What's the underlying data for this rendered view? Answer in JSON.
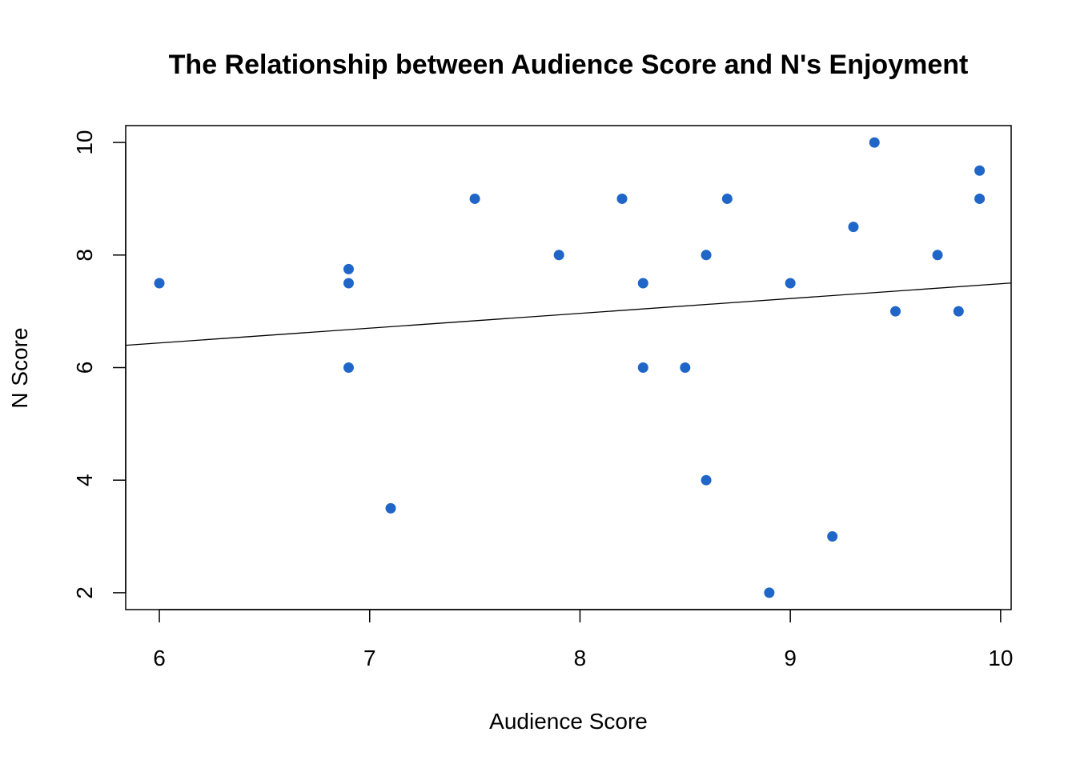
{
  "chart_data": {
    "type": "scatter",
    "title": "The Relationship between Audience Score and N's Enjoyment",
    "xlabel": "Audience Score",
    "ylabel": "N Score",
    "xlim": [
      5.84,
      10.05
    ],
    "ylim": [
      1.7,
      10.3
    ],
    "xticks": [
      6,
      7,
      8,
      9,
      10
    ],
    "yticks": [
      2,
      4,
      6,
      8,
      10
    ],
    "xtick_labels": [
      "6",
      "7",
      "8",
      "9",
      "10"
    ],
    "ytick_labels": [
      "2",
      "4",
      "6",
      "8",
      "10"
    ],
    "grid": false,
    "point_color": "#1f66c8",
    "line_color": "#000000",
    "points": [
      {
        "x": 6.0,
        "y": 7.5
      },
      {
        "x": 6.9,
        "y": 7.75
      },
      {
        "x": 6.9,
        "y": 7.5
      },
      {
        "x": 6.9,
        "y": 6.0
      },
      {
        "x": 7.1,
        "y": 3.5
      },
      {
        "x": 7.5,
        "y": 9.0
      },
      {
        "x": 7.9,
        "y": 8.0
      },
      {
        "x": 8.2,
        "y": 9.0
      },
      {
        "x": 8.3,
        "y": 7.5
      },
      {
        "x": 8.3,
        "y": 6.0
      },
      {
        "x": 8.5,
        "y": 6.0
      },
      {
        "x": 8.6,
        "y": 8.0
      },
      {
        "x": 8.6,
        "y": 4.0
      },
      {
        "x": 8.7,
        "y": 9.0
      },
      {
        "x": 8.9,
        "y": 2.0
      },
      {
        "x": 9.0,
        "y": 7.5
      },
      {
        "x": 9.2,
        "y": 3.0
      },
      {
        "x": 9.3,
        "y": 8.5
      },
      {
        "x": 9.4,
        "y": 10.0
      },
      {
        "x": 9.5,
        "y": 7.0
      },
      {
        "x": 9.7,
        "y": 8.0
      },
      {
        "x": 9.8,
        "y": 7.0
      },
      {
        "x": 9.9,
        "y": 9.5
      },
      {
        "x": 9.9,
        "y": 9.0
      }
    ],
    "regression_line": {
      "intercept": 4.86,
      "slope": 0.263
    }
  }
}
